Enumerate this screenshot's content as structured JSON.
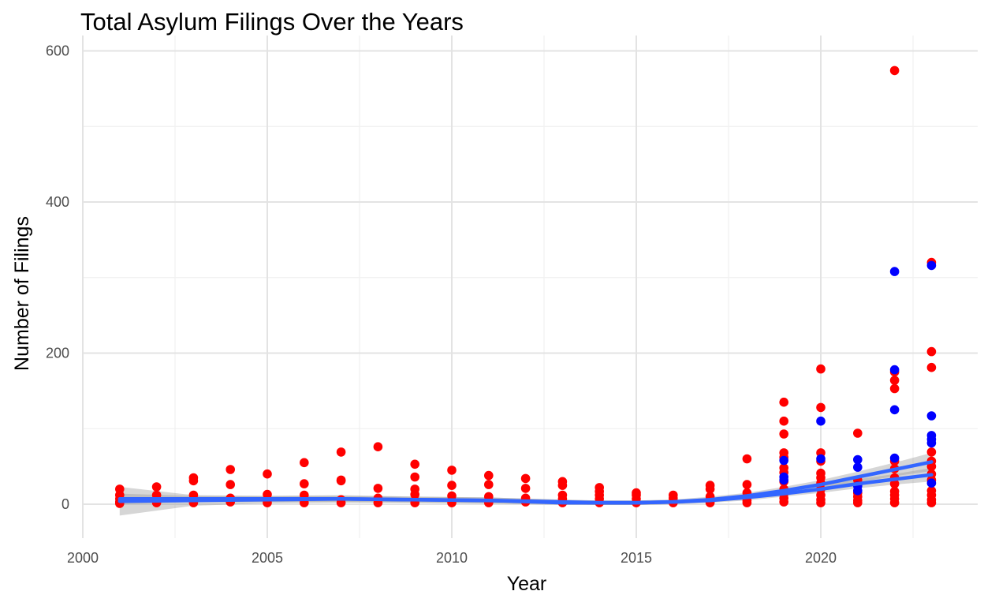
{
  "chart_data": {
    "type": "scatter",
    "title": "Total Asylum Filings Over the Years",
    "xlabel": "Year",
    "ylabel": "Number of Filings",
    "xlim": [
      2000,
      2024
    ],
    "ylim": [
      -50,
      600
    ],
    "xticks": [
      2000,
      2005,
      2010,
      2015,
      2020
    ],
    "yticks": [
      0,
      200,
      400,
      600
    ],
    "grid": true,
    "legend": "none",
    "colors": {
      "red": "#ff0000",
      "blue": "#0000ff",
      "smooth": "#3366ff",
      "band": "#999999"
    },
    "series": [
      {
        "color": "red",
        "points": [
          [
            2001,
            20
          ],
          [
            2001,
            12
          ],
          [
            2001,
            7
          ],
          [
            2001,
            3
          ],
          [
            2001,
            1
          ],
          [
            2002,
            23
          ],
          [
            2002,
            12
          ],
          [
            2002,
            5
          ],
          [
            2002,
            2
          ],
          [
            2003,
            35
          ],
          [
            2003,
            31
          ],
          [
            2003,
            12
          ],
          [
            2003,
            5
          ],
          [
            2003,
            2
          ],
          [
            2004,
            46
          ],
          [
            2004,
            26
          ],
          [
            2004,
            8
          ],
          [
            2004,
            3
          ],
          [
            2005,
            40
          ],
          [
            2005,
            13
          ],
          [
            2005,
            6
          ],
          [
            2005,
            2
          ],
          [
            2006,
            55
          ],
          [
            2006,
            27
          ],
          [
            2006,
            12
          ],
          [
            2006,
            6
          ],
          [
            2006,
            2
          ],
          [
            2007,
            69
          ],
          [
            2007,
            32
          ],
          [
            2007,
            31
          ],
          [
            2007,
            6
          ],
          [
            2007,
            2
          ],
          [
            2008,
            76
          ],
          [
            2008,
            21
          ],
          [
            2008,
            8
          ],
          [
            2008,
            2
          ],
          [
            2009,
            53
          ],
          [
            2009,
            36
          ],
          [
            2009,
            20
          ],
          [
            2009,
            13
          ],
          [
            2009,
            5
          ],
          [
            2009,
            2
          ],
          [
            2010,
            45
          ],
          [
            2010,
            25
          ],
          [
            2010,
            11
          ],
          [
            2010,
            5
          ],
          [
            2010,
            2
          ],
          [
            2011,
            38
          ],
          [
            2011,
            26
          ],
          [
            2011,
            10
          ],
          [
            2011,
            5
          ],
          [
            2011,
            2
          ],
          [
            2012,
            34
          ],
          [
            2012,
            21
          ],
          [
            2012,
            8
          ],
          [
            2012,
            3
          ],
          [
            2013,
            30
          ],
          [
            2013,
            25
          ],
          [
            2013,
            12
          ],
          [
            2013,
            7
          ],
          [
            2013,
            2
          ],
          [
            2014,
            22
          ],
          [
            2014,
            17
          ],
          [
            2014,
            12
          ],
          [
            2014,
            7
          ],
          [
            2014,
            2
          ],
          [
            2015,
            15
          ],
          [
            2015,
            12
          ],
          [
            2015,
            7
          ],
          [
            2015,
            2
          ],
          [
            2016,
            12
          ],
          [
            2016,
            8
          ],
          [
            2016,
            4
          ],
          [
            2016,
            2
          ],
          [
            2017,
            25
          ],
          [
            2017,
            20
          ],
          [
            2017,
            10
          ],
          [
            2017,
            5
          ],
          [
            2017,
            2
          ],
          [
            2018,
            60
          ],
          [
            2018,
            26
          ],
          [
            2018,
            15
          ],
          [
            2018,
            10
          ],
          [
            2018,
            5
          ],
          [
            2018,
            2
          ],
          [
            2019,
            135
          ],
          [
            2019,
            110
          ],
          [
            2019,
            93
          ],
          [
            2019,
            68
          ],
          [
            2019,
            62
          ],
          [
            2019,
            48
          ],
          [
            2019,
            42
          ],
          [
            2019,
            30
          ],
          [
            2019,
            20
          ],
          [
            2019,
            14
          ],
          [
            2019,
            8
          ],
          [
            2019,
            3
          ],
          [
            2020,
            179
          ],
          [
            2020,
            128
          ],
          [
            2020,
            68
          ],
          [
            2020,
            57
          ],
          [
            2020,
            41
          ],
          [
            2020,
            35
          ],
          [
            2020,
            28
          ],
          [
            2020,
            20
          ],
          [
            2020,
            12
          ],
          [
            2020,
            6
          ],
          [
            2020,
            2
          ],
          [
            2021,
            94
          ],
          [
            2021,
            32
          ],
          [
            2021,
            26
          ],
          [
            2021,
            15
          ],
          [
            2021,
            10
          ],
          [
            2021,
            5
          ],
          [
            2021,
            2
          ],
          [
            2022,
            574
          ],
          [
            2022,
            175
          ],
          [
            2022,
            164
          ],
          [
            2022,
            153
          ],
          [
            2022,
            57
          ],
          [
            2022,
            47
          ],
          [
            2022,
            35
          ],
          [
            2022,
            27
          ],
          [
            2022,
            17
          ],
          [
            2022,
            12
          ],
          [
            2022,
            7
          ],
          [
            2022,
            2
          ],
          [
            2023,
            320
          ],
          [
            2023,
            202
          ],
          [
            2023,
            181
          ],
          [
            2023,
            69
          ],
          [
            2023,
            57
          ],
          [
            2023,
            50
          ],
          [
            2023,
            40
          ],
          [
            2023,
            32
          ],
          [
            2023,
            18
          ],
          [
            2023,
            12
          ],
          [
            2023,
            6
          ],
          [
            2023,
            2
          ]
        ]
      },
      {
        "color": "blue",
        "points": [
          [
            2019,
            58
          ],
          [
            2019,
            36
          ],
          [
            2019,
            32
          ],
          [
            2020,
            110
          ],
          [
            2020,
            60
          ],
          [
            2021,
            59
          ],
          [
            2021,
            49
          ],
          [
            2021,
            24
          ],
          [
            2021,
            18
          ],
          [
            2022,
            308
          ],
          [
            2022,
            178
          ],
          [
            2022,
            125
          ],
          [
            2022,
            61
          ],
          [
            2023,
            316
          ],
          [
            2023,
            117
          ],
          [
            2023,
            91
          ],
          [
            2023,
            86
          ],
          [
            2023,
            81
          ],
          [
            2023,
            28
          ]
        ]
      }
    ],
    "smooth_lines": [
      {
        "name": "",
        "x": [
          2001,
          2003,
          2005,
          2007,
          2009,
          2011,
          2013,
          2014,
          2015,
          2016,
          2017,
          2018,
          2019,
          2020,
          2021,
          2022,
          2023
        ],
        "y": [
          4,
          5,
          6,
          7,
          6,
          5,
          2,
          2,
          2,
          3,
          6,
          11,
          18,
          26,
          36,
          46,
          56
        ],
        "band": [
          [
            2001,
            -15,
            23
          ],
          [
            2003,
            -2,
            12
          ],
          [
            2005,
            1,
            11
          ],
          [
            2007,
            2,
            12
          ],
          [
            2009,
            2,
            10
          ],
          [
            2011,
            1,
            9
          ],
          [
            2013,
            -1,
            6
          ],
          [
            2014,
            -1,
            5
          ],
          [
            2015,
            -1,
            5
          ],
          [
            2016,
            0,
            6
          ],
          [
            2017,
            3,
            10
          ],
          [
            2018,
            7,
            15
          ],
          [
            2019,
            13,
            23
          ],
          [
            2020,
            20,
            32
          ],
          [
            2021,
            29,
            43
          ],
          [
            2022,
            37,
            55
          ],
          [
            2023,
            44,
            68
          ]
        ]
      },
      {
        "name": "",
        "x": [
          2001,
          2003,
          2005,
          2007,
          2009,
          2011,
          2013,
          2014,
          2015,
          2016,
          2017,
          2018,
          2019,
          2020,
          2021,
          2022,
          2023
        ],
        "y": [
          7,
          7,
          7,
          7,
          6,
          5,
          3,
          2,
          2,
          3,
          5,
          9,
          14,
          20,
          27,
          33,
          39
        ],
        "band": [
          [
            2001,
            0,
            14
          ],
          [
            2003,
            3,
            11
          ],
          [
            2005,
            3,
            11
          ],
          [
            2007,
            3,
            11
          ],
          [
            2009,
            2,
            10
          ],
          [
            2011,
            1,
            9
          ],
          [
            2013,
            0,
            6
          ],
          [
            2014,
            -1,
            5
          ],
          [
            2015,
            -1,
            5
          ],
          [
            2016,
            0,
            6
          ],
          [
            2017,
            2,
            8
          ],
          [
            2018,
            5,
            13
          ],
          [
            2019,
            10,
            18
          ],
          [
            2020,
            15,
            25
          ],
          [
            2021,
            21,
            33
          ],
          [
            2022,
            26,
            40
          ],
          [
            2023,
            30,
            48
          ]
        ]
      }
    ]
  }
}
